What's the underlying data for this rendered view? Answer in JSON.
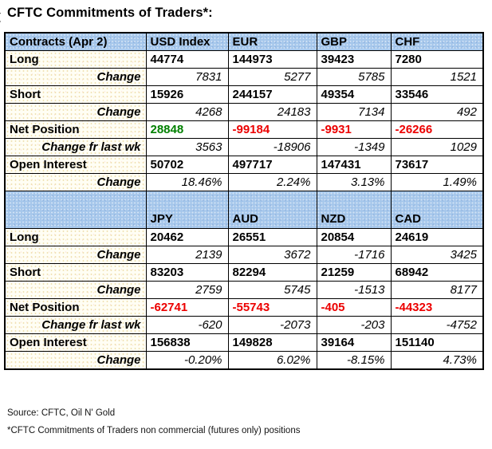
{
  "title_prefix_mark": "(",
  "title": "CFTC Commitments of Traders*:",
  "colors": {
    "header_bg": "#a6c7eb",
    "label_bg": "#fdf8e8",
    "positive": "#008000",
    "negative": "#ec0000",
    "border": "#000000"
  },
  "table": {
    "sections": [
      {
        "header": [
          "Contracts (Apr 2)",
          "USD Index",
          "EUR",
          "GBP",
          "CHF"
        ],
        "rows": [
          {
            "label": "Long",
            "type": "data",
            "values": [
              "44774",
              "144973",
              "39423",
              "7280"
            ]
          },
          {
            "label": "Change",
            "type": "change",
            "values": [
              "7831",
              "5277",
              "5785",
              "1521"
            ]
          },
          {
            "label": "Short",
            "type": "data",
            "values": [
              "15926",
              "244157",
              "49354",
              "33546"
            ]
          },
          {
            "label": "Change",
            "type": "change",
            "values": [
              "4268",
              "24183",
              "7134",
              "492"
            ]
          },
          {
            "label": "Net Position",
            "type": "net",
            "values": [
              "28848",
              "-99184",
              "-9931",
              "-26266"
            ]
          },
          {
            "label": "Change fr last wk",
            "type": "change",
            "values": [
              "3563",
              "-18906",
              "-1349",
              "1029"
            ]
          },
          {
            "label": "Open Interest",
            "type": "data",
            "values": [
              "50702",
              "497717",
              "147431",
              "73617"
            ]
          },
          {
            "label": "Change",
            "type": "change",
            "values": [
              "18.46%",
              "2.24%",
              "3.13%",
              "1.49%"
            ]
          }
        ]
      },
      {
        "header": [
          "",
          "JPY",
          "AUD",
          "NZD",
          "CAD"
        ],
        "rows": [
          {
            "label": "Long",
            "type": "data",
            "values": [
              "20462",
              "26551",
              "20854",
              "24619"
            ]
          },
          {
            "label": "Change",
            "type": "change",
            "values": [
              "2139",
              "3672",
              "-1716",
              "3425"
            ]
          },
          {
            "label": "Short",
            "type": "data",
            "values": [
              "83203",
              "82294",
              "21259",
              "68942"
            ]
          },
          {
            "label": "Change",
            "type": "change",
            "values": [
              "2759",
              "5745",
              "-1513",
              "8177"
            ]
          },
          {
            "label": "Net Position",
            "type": "net",
            "values": [
              "-62741",
              "-55743",
              "-405",
              "-44323"
            ]
          },
          {
            "label": "Change fr last wk",
            "type": "change",
            "values": [
              "-620",
              "-2073",
              "-203",
              "-4752"
            ]
          },
          {
            "label": "Open Interest",
            "type": "data",
            "values": [
              "156838",
              "149828",
              "39164",
              "151140"
            ]
          },
          {
            "label": "Change",
            "type": "change",
            "values": [
              "-0.20%",
              "6.02%",
              "-8.15%",
              "4.73%"
            ]
          }
        ]
      }
    ]
  },
  "footer": {
    "source": "Source: CFTC, Oil N' Gold",
    "note": "*CFTC Commitments of Traders non commercial (futures only) positions"
  }
}
